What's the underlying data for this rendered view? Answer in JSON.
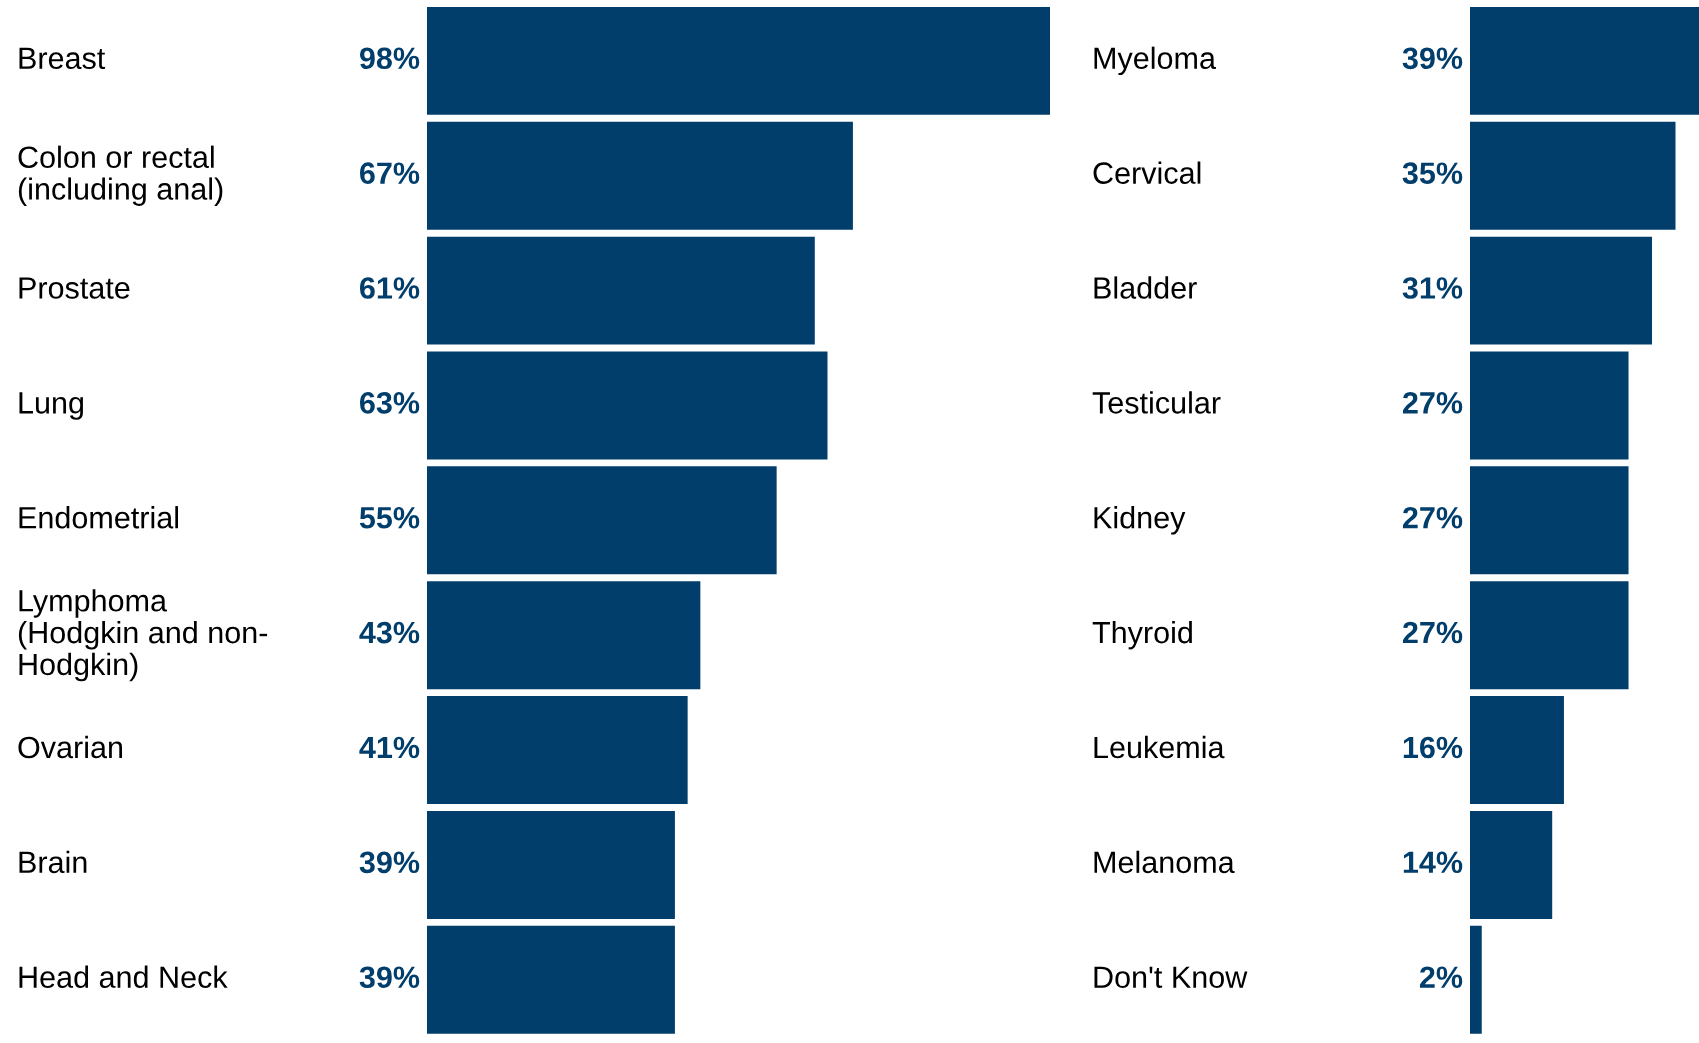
{
  "chart_data": [
    {
      "type": "bar",
      "orientation": "horizontal",
      "categories": [
        "Breast",
        "Colon or rectal\n(including anal)",
        "Prostate",
        "Lung",
        "Endometrial",
        "Lymphoma\n(Hodgkin and non-\nHodgkin)",
        "Ovarian",
        "Brain",
        "Head and Neck"
      ],
      "values": [
        98,
        67,
        61,
        63,
        55,
        43,
        41,
        39,
        39
      ],
      "value_labels": [
        "98%",
        "67%",
        "61%",
        "63%",
        "55%",
        "43%",
        "41%",
        "39%",
        "39%"
      ],
      "color": "#023e6b"
    },
    {
      "type": "bar",
      "orientation": "horizontal",
      "categories": [
        "Myeloma",
        "Cervical",
        "Bladder",
        "Testicular",
        "Kidney",
        "Thyroid",
        "Leukemia",
        "Melanoma",
        "Don't Know"
      ],
      "values": [
        39,
        35,
        31,
        27,
        27,
        27,
        16,
        14,
        2
      ],
      "value_labels": [
        "39%",
        "35%",
        "31%",
        "27%",
        "27%",
        "27%",
        "16%",
        "14%",
        "2%"
      ],
      "color": "#023e6b"
    }
  ]
}
